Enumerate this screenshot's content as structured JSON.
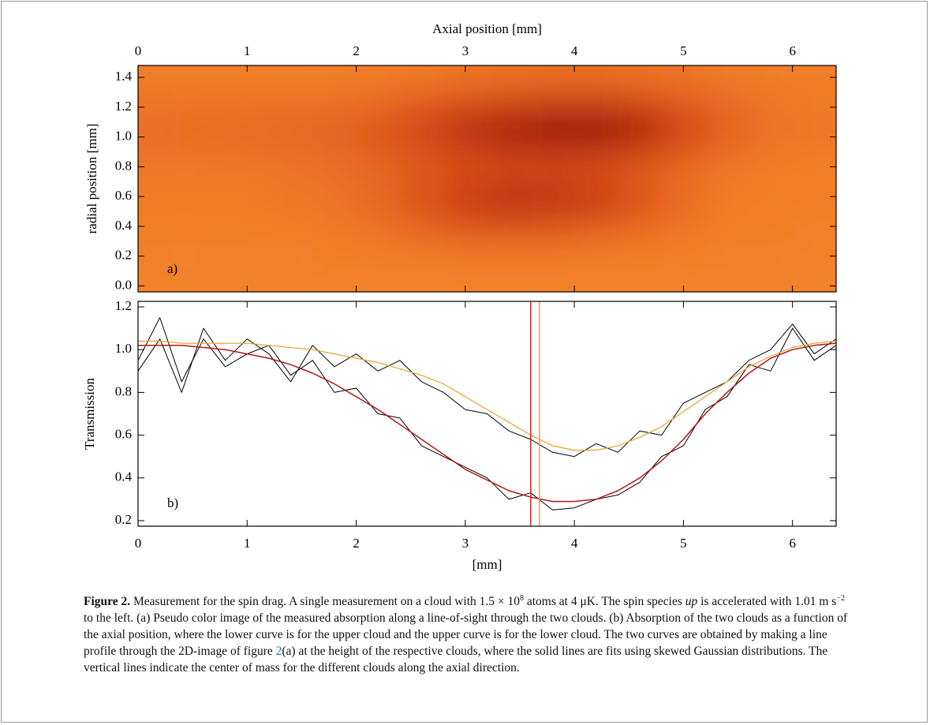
{
  "chart_data": [
    {
      "type": "heatmap",
      "title": "Axial position [mm]",
      "ylabel": "radial position [mm]",
      "annotation": "a)",
      "xlim": [
        0,
        6.4
      ],
      "xticks": [
        0,
        1,
        2,
        3,
        4,
        5,
        6
      ],
      "ylim": [
        -0.04,
        1.48
      ],
      "yticks": [
        {
          "value": 0,
          "label": "0.0"
        },
        0.2,
        0.4,
        0.6,
        0.8,
        {
          "value": 1,
          "label": "1.0"
        },
        1.2,
        1.4
      ],
      "x": [
        0.2,
        0.6,
        1.0,
        1.4,
        1.8,
        2.2,
        2.6,
        3.0,
        3.4,
        3.8,
        4.2,
        4.6,
        5.0,
        5.4,
        5.8,
        6.2
      ],
      "y": [
        1.425,
        1.275,
        1.125,
        0.975,
        0.825,
        0.675,
        0.525,
        0.375,
        0.225,
        0.075
      ],
      "colors": [
        "#f78c2c",
        "#d9461a",
        "#8a0a05"
      ],
      "z": [
        [
          0.1,
          0.1,
          0.1,
          0.1,
          0.1,
          0.1,
          0.12,
          0.15,
          0.18,
          0.2,
          0.2,
          0.18,
          0.15,
          0.12,
          0.1,
          0.1
        ],
        [
          0.15,
          0.15,
          0.15,
          0.15,
          0.15,
          0.2,
          0.28,
          0.35,
          0.4,
          0.42,
          0.42,
          0.38,
          0.3,
          0.2,
          0.15,
          0.12
        ],
        [
          0.2,
          0.22,
          0.22,
          0.25,
          0.28,
          0.35,
          0.5,
          0.65,
          0.75,
          0.85,
          0.85,
          0.72,
          0.5,
          0.3,
          0.18,
          0.15
        ],
        [
          0.22,
          0.22,
          0.25,
          0.25,
          0.3,
          0.38,
          0.52,
          0.68,
          0.8,
          0.88,
          0.88,
          0.75,
          0.52,
          0.3,
          0.18,
          0.15
        ],
        [
          0.15,
          0.15,
          0.15,
          0.18,
          0.2,
          0.28,
          0.35,
          0.42,
          0.45,
          0.45,
          0.42,
          0.35,
          0.25,
          0.15,
          0.12,
          0.1
        ],
        [
          0.12,
          0.12,
          0.12,
          0.15,
          0.18,
          0.25,
          0.4,
          0.55,
          0.62,
          0.62,
          0.55,
          0.4,
          0.22,
          0.12,
          0.1,
          0.1
        ],
        [
          0.12,
          0.12,
          0.12,
          0.15,
          0.18,
          0.25,
          0.42,
          0.58,
          0.68,
          0.65,
          0.58,
          0.42,
          0.22,
          0.12,
          0.1,
          0.1
        ],
        [
          0.1,
          0.1,
          0.1,
          0.1,
          0.12,
          0.18,
          0.28,
          0.35,
          0.38,
          0.35,
          0.3,
          0.22,
          0.15,
          0.1,
          0.1,
          0.08
        ],
        [
          0.08,
          0.08,
          0.08,
          0.08,
          0.1,
          0.1,
          0.12,
          0.15,
          0.15,
          0.15,
          0.12,
          0.1,
          0.1,
          0.08,
          0.08,
          0.08
        ],
        [
          0.08,
          0.08,
          0.08,
          0.08,
          0.08,
          0.08,
          0.08,
          0.08,
          0.08,
          0.08,
          0.08,
          0.08,
          0.08,
          0.08,
          0.08,
          0.08
        ]
      ]
    },
    {
      "type": "line",
      "xlabel": "[mm]",
      "ylabel": "Transmission",
      "annotation": "b)",
      "xlim": [
        0,
        6.4
      ],
      "xticks": [
        0,
        1,
        2,
        3,
        4,
        5,
        6
      ],
      "ylim": [
        0.174,
        1.226
      ],
      "yticks": [
        0.2,
        0.4,
        0.6,
        0.8,
        {
          "value": 1,
          "label": "1.0"
        },
        1.2
      ],
      "x": [
        0,
        0.2,
        0.4,
        0.6,
        0.8,
        1.0,
        1.2,
        1.4,
        1.6,
        1.8,
        2.0,
        2.2,
        2.4,
        2.6,
        2.8,
        3.0,
        3.2,
        3.4,
        3.6,
        3.8,
        4.0,
        4.2,
        4.4,
        4.6,
        4.8,
        5.0,
        5.2,
        5.4,
        5.6,
        5.8,
        6.0,
        6.2,
        6.4
      ],
      "series": [
        {
          "color": "#000000",
          "width": 1,
          "values": [
            0.95,
            1.15,
            0.85,
            1.05,
            0.92,
            0.98,
            1.02,
            0.88,
            0.95,
            0.8,
            0.82,
            0.7,
            0.68,
            0.55,
            0.5,
            0.45,
            0.4,
            0.3,
            0.33,
            0.25,
            0.26,
            0.3,
            0.32,
            0.38,
            0.5,
            0.55,
            0.72,
            0.78,
            0.93,
            0.9,
            1.1,
            0.95,
            1.02
          ]
        },
        {
          "color": "#000000",
          "width": 1,
          "values": [
            0.9,
            1.05,
            0.8,
            1.1,
            0.95,
            1.05,
            0.98,
            0.85,
            1.02,
            0.92,
            0.98,
            0.9,
            0.95,
            0.85,
            0.8,
            0.72,
            0.7,
            0.62,
            0.58,
            0.52,
            0.5,
            0.56,
            0.52,
            0.62,
            0.6,
            0.75,
            0.8,
            0.85,
            0.95,
            1.0,
            1.12,
            0.98,
            1.05
          ]
        },
        {
          "color": "#b01818",
          "width": 1.5,
          "values": [
            1.02,
            1.02,
            1.02,
            1.01,
            1.0,
            0.98,
            0.96,
            0.93,
            0.89,
            0.84,
            0.78,
            0.72,
            0.65,
            0.58,
            0.51,
            0.44,
            0.39,
            0.34,
            0.31,
            0.29,
            0.29,
            0.3,
            0.34,
            0.4,
            0.48,
            0.58,
            0.7,
            0.8,
            0.89,
            0.96,
            1.0,
            1.02,
            1.03
          ]
        },
        {
          "color": "#f0a030",
          "width": 1.2,
          "values": [
            1.04,
            1.04,
            1.03,
            1.03,
            1.03,
            1.03,
            1.02,
            1.01,
            1.0,
            0.98,
            0.96,
            0.94,
            0.91,
            0.88,
            0.84,
            0.78,
            0.72,
            0.66,
            0.6,
            0.55,
            0.53,
            0.53,
            0.55,
            0.59,
            0.64,
            0.71,
            0.78,
            0.85,
            0.92,
            0.97,
            1.01,
            1.03,
            1.04
          ]
        }
      ],
      "vlines": [
        {
          "x": 3.6,
          "color": "#d42020"
        },
        {
          "x": 3.68,
          "color": "#f0a030"
        }
      ]
    }
  ],
  "caption": {
    "label": "Figure 2.",
    "segments": [
      {
        "text": " Measurement for the spin drag. A single measurement on a cloud with 1.5 × 10"
      },
      {
        "text": "8",
        "style": "sup"
      },
      {
        "text": " atoms at 4 μK. The spin species "
      },
      {
        "text": "up",
        "style": "italic"
      },
      {
        "text": " is accelerated with 1.01 m s"
      },
      {
        "text": "−2",
        "style": "sup"
      },
      {
        "text": " to the left. (a) Pseudo color image of the measured absorption along a line-of-sight through the two clouds. (b) Absorption of the two clouds as a function of the axial position, where the lower curve is for the upper cloud and the upper curve is for the lower cloud. The two curves are obtained by making a line profile through the 2D-image of figure "
      },
      {
        "text": "2",
        "style": "link"
      },
      {
        "text": "(a) at the height of the respective clouds, where the solid lines are fits using skewed Gaussian distributions. The vertical lines indicate the center of mass for the different clouds along the axial direction."
      }
    ]
  }
}
